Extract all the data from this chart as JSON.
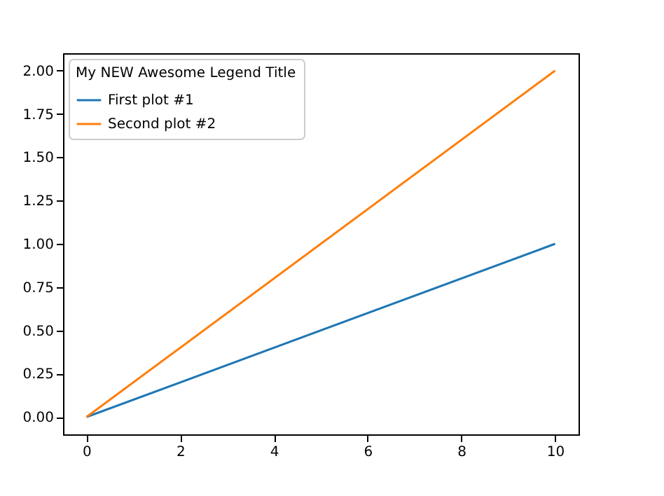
{
  "chart_data": {
    "type": "line",
    "x": [
      0,
      10
    ],
    "series": [
      {
        "name": "First plot     #1",
        "color": "#1f77b4",
        "values": [
          0,
          1
        ]
      },
      {
        "name": "Second plot    #2",
        "color": "#ff7f0e",
        "values": [
          0,
          2
        ]
      }
    ],
    "legend_title": "My NEW Awesome Legend Title",
    "legend": "top left",
    "xlim": [
      -0.5,
      10.5
    ],
    "xticks": [
      0,
      2,
      4,
      6,
      8,
      10
    ],
    "ylim": [
      -0.1,
      2.1
    ],
    "yticks": [
      {
        "value": 0,
        "label": "0.00"
      },
      0.25,
      {
        "value": 0.5,
        "label": "0.50"
      },
      0.75,
      {
        "value": 1,
        "label": "1.00"
      },
      1.25,
      {
        "value": 1.5,
        "label": "1.50"
      },
      1.75,
      {
        "value": 2,
        "label": "2.00"
      }
    ],
    "grid": false,
    "marker": "none",
    "line_style": "solid"
  }
}
